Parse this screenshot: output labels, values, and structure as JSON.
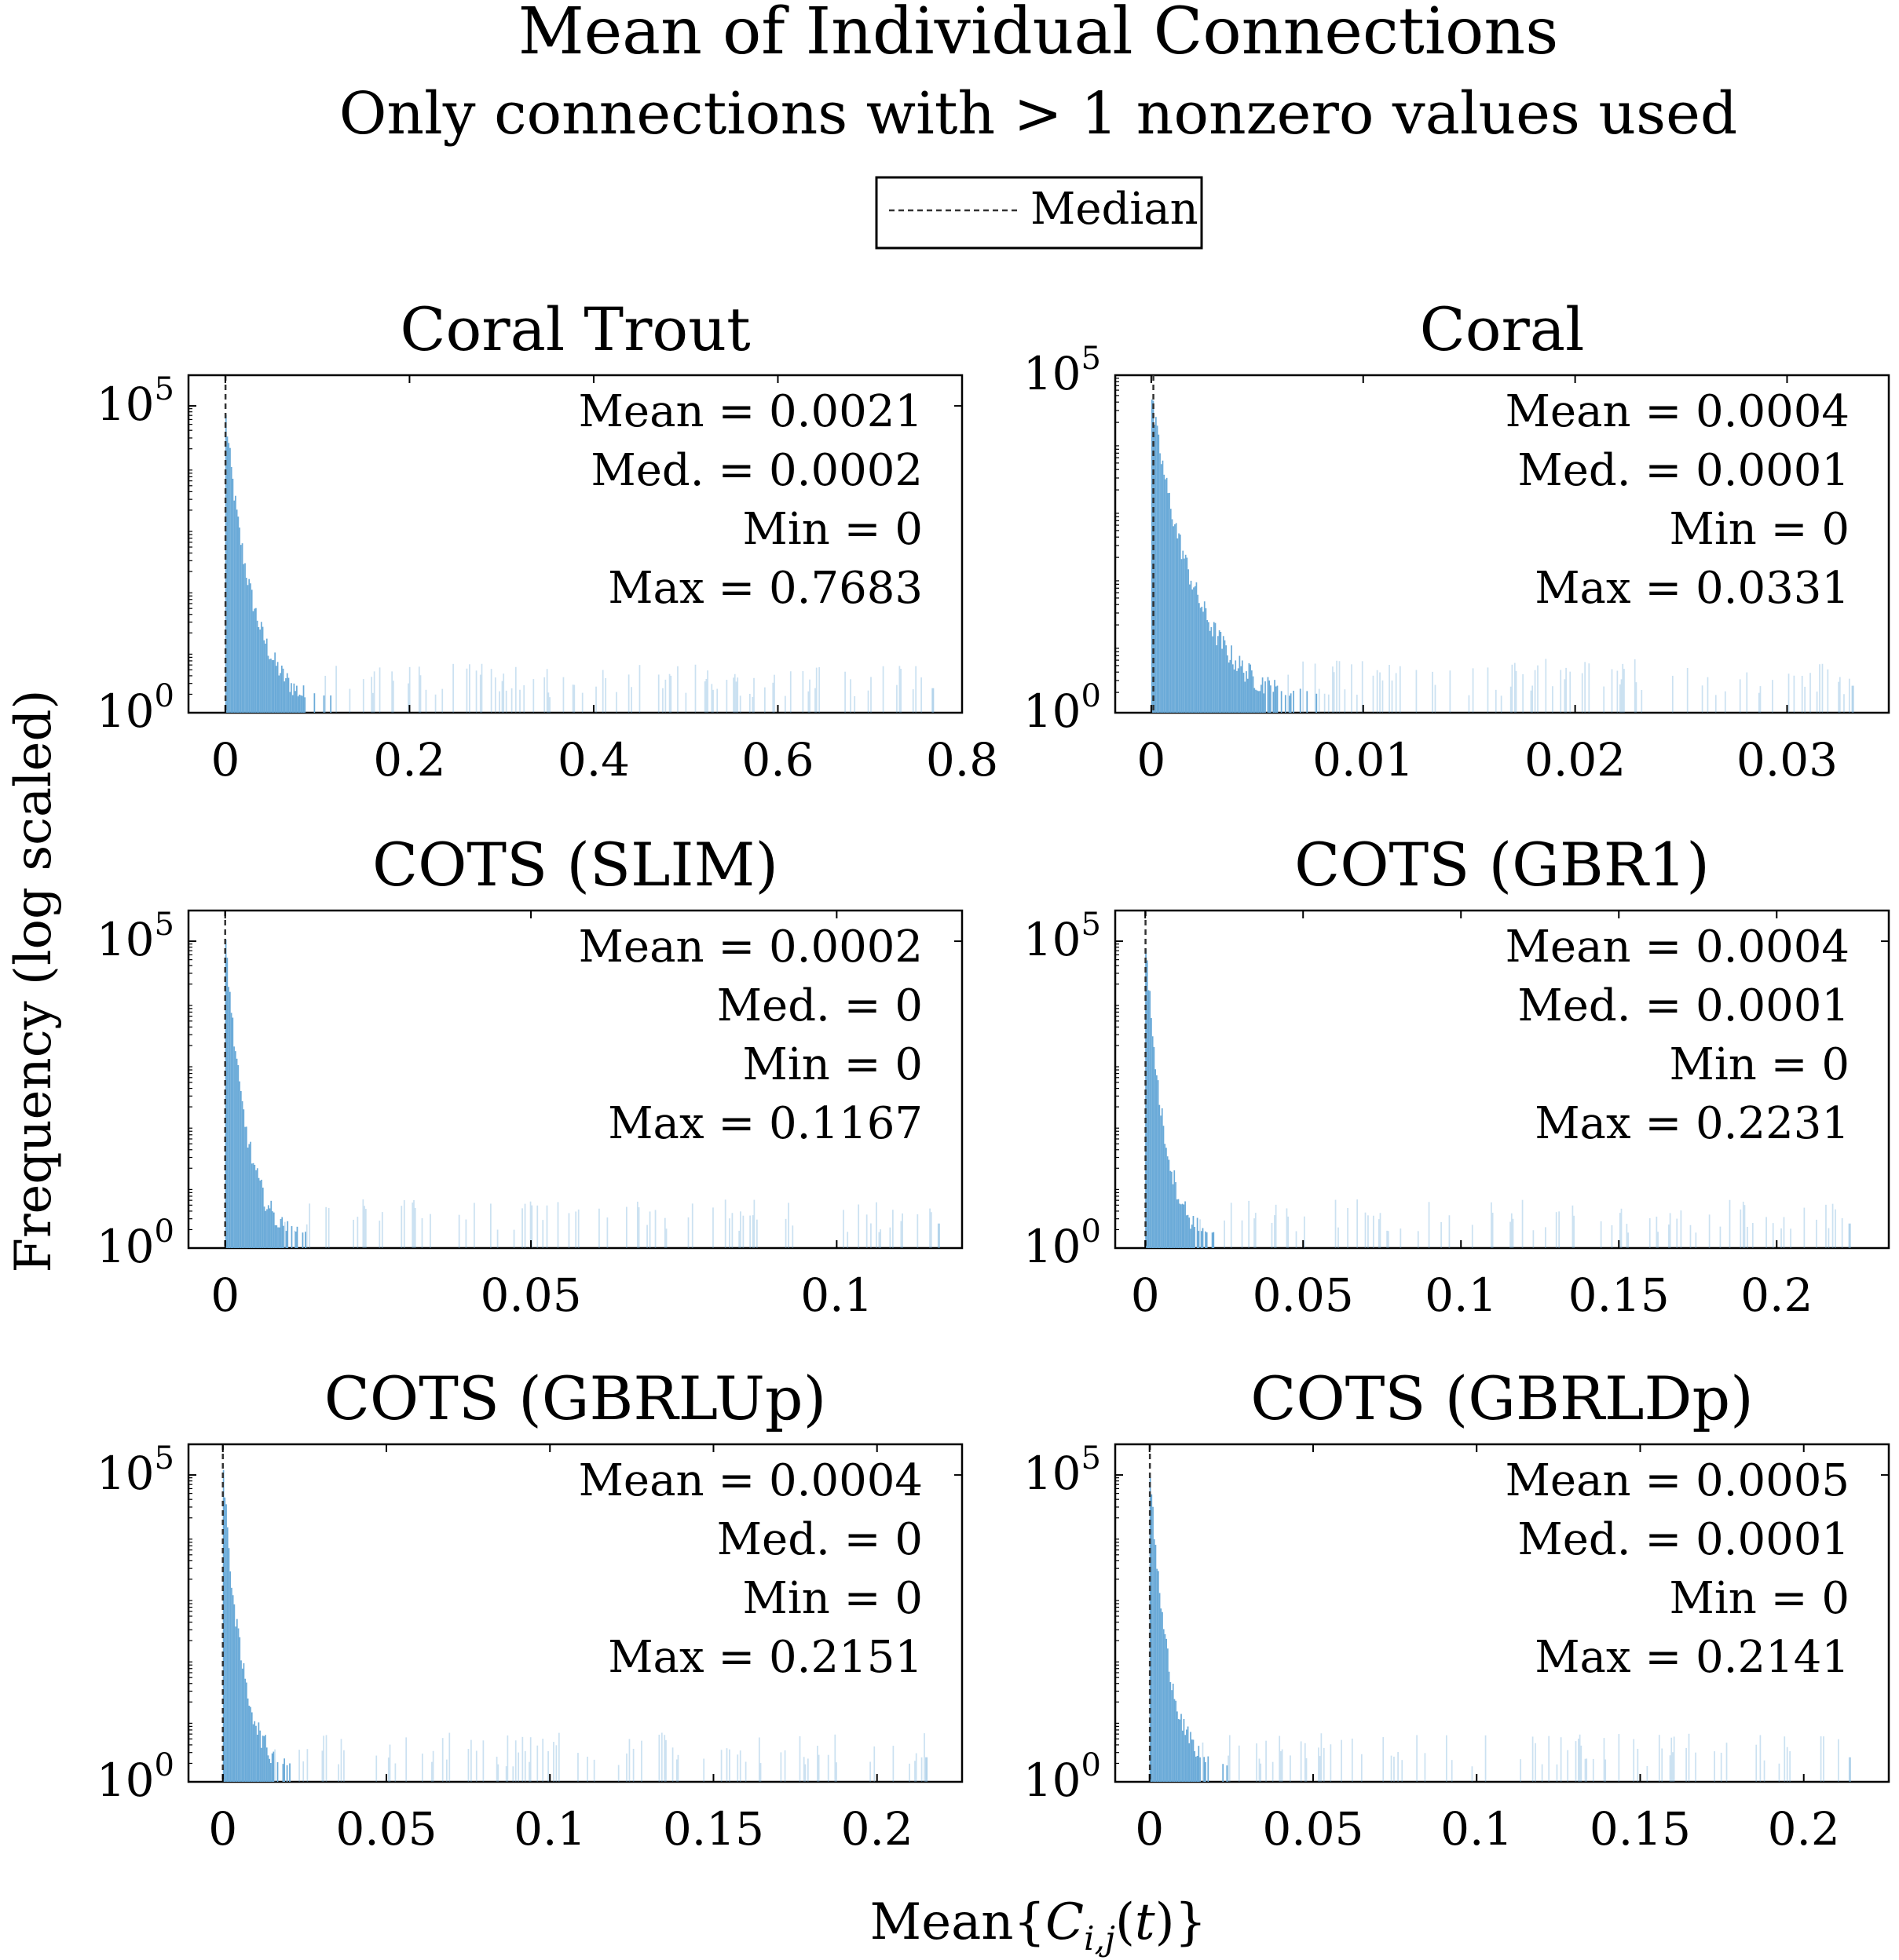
{
  "figure": {
    "title": "Mean of Individual Connections",
    "subtitle": "Only connections with > 1 nonzero values used",
    "ylabel": "Frequency (log scaled)",
    "xlabel": "Mean{C_i,j(t)}",
    "legend": {
      "label": "Median",
      "placement": "top-center"
    },
    "bar_color": "#6aaad8",
    "median_line_color": "#333333"
  },
  "chart_data": [
    {
      "type": "bar",
      "title": "Coral Trout",
      "xticks": [
        0,
        0.2,
        0.4,
        0.6,
        0.8
      ],
      "xtick_labels": [
        "0",
        "0.2",
        "0.4",
        "0.6",
        "0.8"
      ],
      "xlim": [
        -0.04,
        0.8
      ],
      "yscale": "log",
      "ytick_labels": [
        "10^5",
        "10^0"
      ],
      "ymax_exp": 5.5,
      "stats": {
        "mean": "Mean = 0.0021",
        "median": "Med. = 0.0002",
        "min": "Min = 0",
        "max": "Max = 0.7683"
      },
      "median_value": 0.0002,
      "max_value": 0.7683,
      "peak_exp": 4.8,
      "decay": 0.03
    },
    {
      "type": "bar",
      "title": "Coral",
      "xticks": [
        0,
        0.01,
        0.02,
        0.03
      ],
      "xtick_labels": [
        "0",
        "0.01",
        "0.02",
        "0.03"
      ],
      "xlim": [
        -0.0017,
        0.0348
      ],
      "yscale": "log",
      "ytick_labels": [
        "10^5",
        "10^0"
      ],
      "ymax_exp": 5,
      "stats": {
        "mean": "Mean = 0.0004",
        "median": "Med. = 0.0001",
        "min": "Min = 0",
        "max": "Max = 0.0331"
      },
      "median_value": 0.0001,
      "max_value": 0.0331,
      "peak_exp": 4.6,
      "decay": 0.0022
    },
    {
      "type": "bar",
      "title": "COTS (SLIM)",
      "xticks": [
        0,
        0.05,
        0.1
      ],
      "xtick_labels": [
        "0",
        "0.05",
        "0.1"
      ],
      "xlim": [
        -0.006,
        0.1205
      ],
      "yscale": "log",
      "ytick_labels": [
        "10^5",
        "10^0"
      ],
      "ymax_exp": 5.5,
      "stats": {
        "mean": "Mean = 0.0002",
        "median": "Med. = 0",
        "min": "Min = 0",
        "max": "Max = 0.1167"
      },
      "median_value": 0,
      "max_value": 0.1167,
      "peak_exp": 5.0,
      "decay": 0.0035
    },
    {
      "type": "bar",
      "title": "COTS (GBR1)",
      "xticks": [
        0,
        0.05,
        0.1,
        0.15,
        0.2
      ],
      "xtick_labels": [
        "0",
        "0.05",
        "0.1",
        "0.15",
        "0.2"
      ],
      "xlim": [
        -0.0095,
        0.2355
      ],
      "yscale": "log",
      "ytick_labels": [
        "10^5",
        "10^0"
      ],
      "ymax_exp": 5.5,
      "stats": {
        "mean": "Mean = 0.0004",
        "median": "Med. = 0.0001",
        "min": "Min = 0",
        "max": "Max = 0.2231"
      },
      "median_value": 0.0001,
      "max_value": 0.2231,
      "peak_exp": 5.0,
      "decay": 0.006
    },
    {
      "type": "bar",
      "title": "COTS (GBRLUp)",
      "xticks": [
        0,
        0.05,
        0.1,
        0.15,
        0.2
      ],
      "xtick_labels": [
        "0",
        "0.05",
        "0.1",
        "0.15",
        "0.2"
      ],
      "xlim": [
        -0.0105,
        0.226
      ],
      "yscale": "log",
      "ytick_labels": [
        "10^5",
        "10^0"
      ],
      "ymax_exp": 5.5,
      "stats": {
        "mean": "Mean = 0.0004",
        "median": "Med. = 0",
        "min": "Min = 0",
        "max": "Max = 0.2151"
      },
      "median_value": 0,
      "max_value": 0.2151,
      "peak_exp": 5.0,
      "decay": 0.006
    },
    {
      "type": "bar",
      "title": "COTS (GBRLDp)",
      "xticks": [
        0,
        0.05,
        0.1,
        0.15,
        0.2
      ],
      "xtick_labels": [
        "0",
        "0.05",
        "0.1",
        "0.15",
        "0.2"
      ],
      "xlim": [
        -0.0105,
        0.226
      ],
      "yscale": "log",
      "ytick_labels": [
        "10^5",
        "10^0"
      ],
      "ymax_exp": 5.5,
      "stats": {
        "mean": "Mean = 0.0005",
        "median": "Med. = 0.0001",
        "min": "Min = 0",
        "max": "Max = 0.2141"
      },
      "median_value": 0.0001,
      "max_value": 0.2141,
      "peak_exp": 5.0,
      "decay": 0.006
    }
  ]
}
